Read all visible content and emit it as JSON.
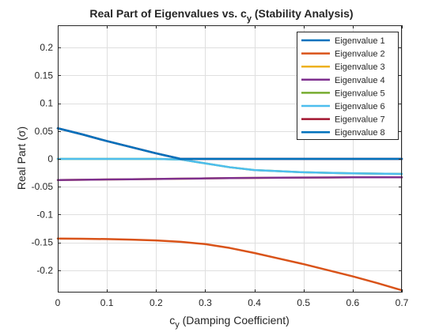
{
  "chart_data": {
    "type": "line",
    "title": "Real Part of Eigenvalues vs. c",
    "title_subscript": "y",
    "title_suffix": " (Stability Analysis)",
    "xlabel": "c",
    "xlabel_subscript": "y",
    "xlabel_suffix": " (Damping Coefficient)",
    "ylabel": "Real Part (σ)",
    "xlim": [
      0,
      0.7
    ],
    "ylim": [
      -0.24,
      0.24
    ],
    "xticks": [
      0,
      0.1,
      0.2,
      0.3,
      0.4,
      0.5,
      0.6,
      0.7
    ],
    "xtick_labels": [
      "0",
      "0.1",
      "0.2",
      "0.3",
      "0.4",
      "0.5",
      "0.6",
      "0.7"
    ],
    "yticks": [
      -0.2,
      -0.15,
      -0.1,
      -0.05,
      0,
      0.05,
      0.1,
      0.15,
      0.2
    ],
    "ytick_labels": [
      "-0.2",
      "-0.15",
      "-0.1",
      "-0.05",
      "0",
      "0.05",
      "0.1",
      "0.15",
      "0.2"
    ],
    "grid": true,
    "legend_position": "top-right",
    "x": [
      0,
      0.05,
      0.1,
      0.15,
      0.2,
      0.25,
      0.3,
      0.35,
      0.4,
      0.45,
      0.5,
      0.55,
      0.6,
      0.65,
      0.7
    ],
    "series": [
      {
        "name": "Eigenvalue 1",
        "color": "#0072BD",
        "values": [
          0.055,
          0.044,
          0.032,
          0.021,
          0.01,
          0,
          0,
          0,
          0,
          0,
          0,
          0,
          0,
          0,
          0
        ]
      },
      {
        "name": "Eigenvalue 2",
        "color": "#D95319",
        "values": [
          -0.143,
          -0.1435,
          -0.144,
          -0.145,
          -0.1465,
          -0.149,
          -0.153,
          -0.16,
          -0.169,
          -0.179,
          -0.189,
          -0.2,
          -0.211,
          -0.223,
          -0.236
        ]
      },
      {
        "name": "Eigenvalue 3",
        "color": "#EDB120",
        "values": [
          -0.038,
          -0.0375,
          -0.037,
          -0.0365,
          -0.036,
          -0.0355,
          -0.035,
          -0.0345,
          -0.034,
          -0.0337,
          -0.0335,
          -0.0333,
          -0.0331,
          -0.033,
          -0.033
        ]
      },
      {
        "name": "Eigenvalue 4",
        "color": "#7E2F8E",
        "values": [
          -0.038,
          -0.0375,
          -0.037,
          -0.0365,
          -0.036,
          -0.0355,
          -0.035,
          -0.0345,
          -0.034,
          -0.0337,
          -0.0335,
          -0.0333,
          -0.0331,
          -0.033,
          -0.033
        ]
      },
      {
        "name": "Eigenvalue 5",
        "color": "#77AC30",
        "values": [
          0,
          0,
          0,
          0,
          0,
          -0.001,
          -0.008,
          -0.015,
          -0.02,
          -0.022,
          -0.024,
          -0.025,
          -0.026,
          -0.0265,
          -0.027
        ]
      },
      {
        "name": "Eigenvalue 6",
        "color": "#4DBEEE",
        "values": [
          0,
          0,
          0,
          0,
          0,
          -0.001,
          -0.008,
          -0.015,
          -0.02,
          -0.022,
          -0.024,
          -0.025,
          -0.026,
          -0.0265,
          -0.027
        ]
      },
      {
        "name": "Eigenvalue 7",
        "color": "#A2142F",
        "values": [
          0.055,
          0.044,
          0.032,
          0.021,
          0.01,
          0,
          0,
          0,
          0,
          0,
          0,
          0,
          0,
          0,
          0
        ]
      },
      {
        "name": "Eigenvalue 8",
        "color": "#0072BD",
        "values": [
          0.055,
          0.044,
          0.032,
          0.021,
          0.01,
          0,
          0,
          0,
          0,
          0,
          0,
          0,
          0,
          0,
          0
        ]
      }
    ]
  }
}
